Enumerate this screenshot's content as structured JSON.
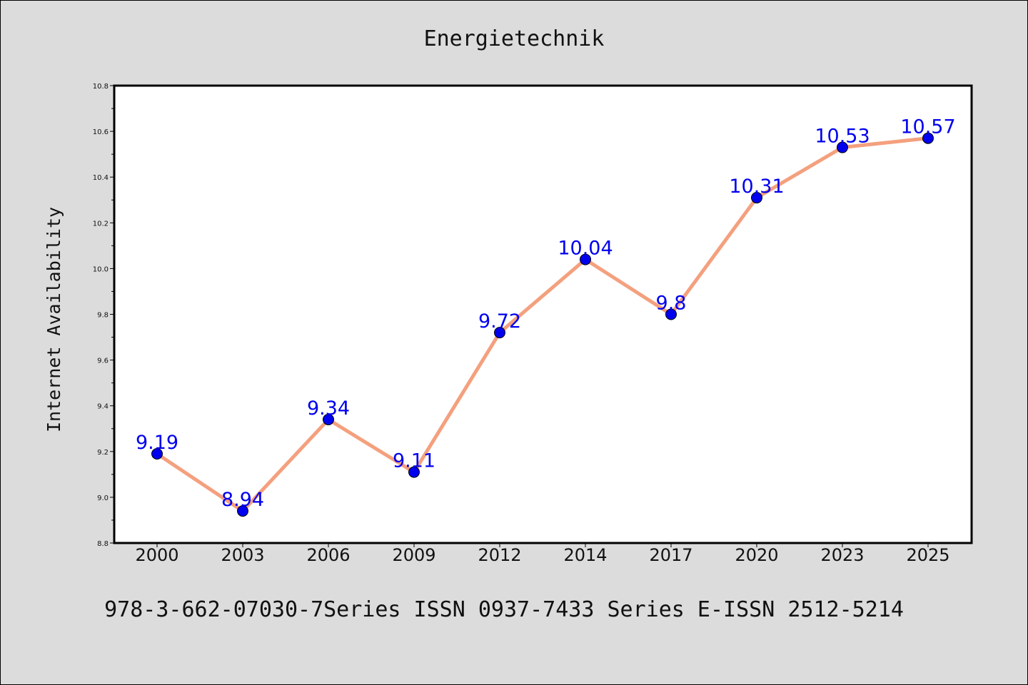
{
  "chart_data": {
    "type": "line",
    "title": "Energietechnik",
    "xlabel": "",
    "ylabel": "Internet Availability",
    "categories": [
      "2000",
      "2003",
      "2006",
      "2009",
      "2012",
      "2014",
      "2017",
      "2020",
      "2023",
      "2025"
    ],
    "values": [
      9.19,
      8.94,
      9.34,
      9.11,
      9.72,
      10.04,
      9.8,
      10.31,
      10.53,
      10.57
    ],
    "data_labels": [
      "9.19",
      "8.94",
      "9.34",
      "9.11",
      "9.72",
      "10.04",
      "9.8",
      "10.31",
      "10.53",
      "10.57"
    ],
    "ylim": [
      8.8,
      10.8
    ],
    "yticks": [
      "8.8",
      "9.0",
      "9.2",
      "9.4",
      "9.6",
      "9.8",
      "10.0",
      "10.2",
      "10.4",
      "10.6",
      "10.8"
    ],
    "grid": false,
    "line_color": "#f4a07e",
    "marker_color": "#0000ee",
    "label_color": "#0000ee"
  },
  "footer": {
    "text": "978-3-662-07030-7Series ISSN 0937-7433 Series E-ISSN 2512-5214"
  }
}
